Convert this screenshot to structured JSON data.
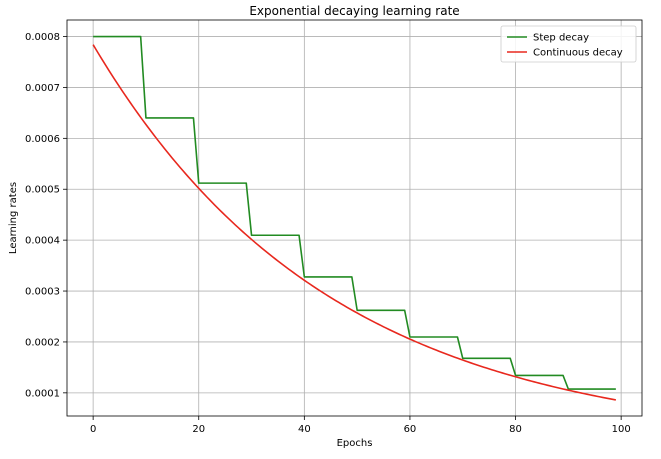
{
  "chart_data": {
    "type": "line",
    "title": "Exponential decaying learning rate",
    "xlabel": "Epochs",
    "ylabel": "Learning rates",
    "xlim": [
      -4.95,
      103.95
    ],
    "ylim": [
      5.45e-05,
      0.0008325
    ],
    "xticks": [
      0,
      20,
      40,
      60,
      80,
      100
    ],
    "yticks": [
      0.0001,
      0.0002,
      0.0003,
      0.0004,
      0.0005,
      0.0006,
      0.0007,
      0.0008
    ],
    "xtick_labels": [
      "0",
      "20",
      "40",
      "60",
      "80",
      "100"
    ],
    "ytick_labels": [
      "0.0001",
      "0.0002",
      "0.0003",
      "0.0004",
      "0.0005",
      "0.0006",
      "0.0007",
      "0.0008"
    ],
    "grid": true,
    "legend_position": "top-right",
    "series": [
      {
        "name": "Step decay",
        "color": "#228b22",
        "shape": "step",
        "step_every": 10,
        "initial": 0.0008,
        "factor": 0.8,
        "x_range": [
          0,
          99
        ]
      },
      {
        "name": "Continuous decay",
        "color": "#e8281e",
        "shape": "exponential",
        "initial": 0.000784,
        "factor_per_10": 0.8,
        "x_range": [
          0,
          99
        ]
      }
    ]
  }
}
